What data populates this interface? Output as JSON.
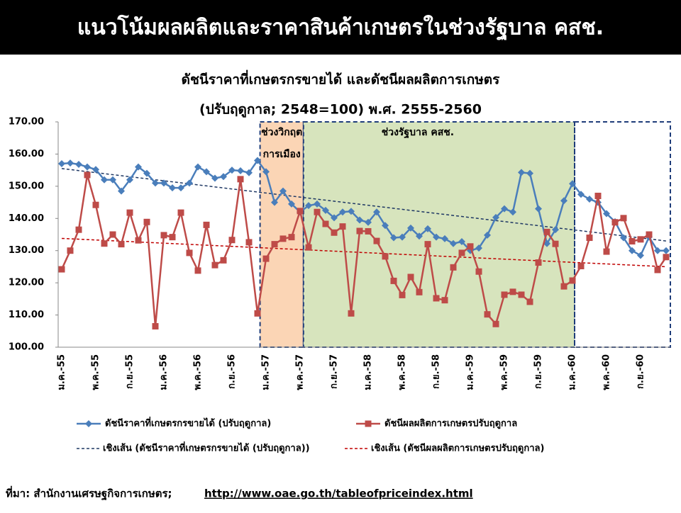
{
  "header": {
    "title": "แนวโน้มผลผลิตและราคาสินค้าเกษตรในช่วงรัฐบาล คสช."
  },
  "chart_data": {
    "type": "line",
    "title": [
      "ดัชนีราคาที่เกษตรกรขายได้ และดัชนีผลผลิตการเกษตร",
      "(ปรับฤดูกาล; 2548=100) พ.ศ. 2555-2560"
    ],
    "categories": [
      "ม.ค.-55",
      null,
      null,
      null,
      "พ.ค.-55",
      null,
      null,
      null,
      "ก.ย.-55",
      null,
      null,
      null,
      "ม.ค.-56",
      null,
      null,
      null,
      "พ.ค.-56",
      null,
      null,
      null,
      "ก.ย.-56",
      null,
      null,
      null,
      "ม.ค.-57",
      null,
      null,
      null,
      "พ.ค.-57",
      null,
      null,
      null,
      "ก.ย.-57",
      null,
      null,
      null,
      "ม.ค.-58",
      null,
      null,
      null,
      "พ.ค.-58",
      null,
      null,
      null,
      "ก.ย.-58",
      null,
      null,
      null,
      "ม.ค.-59",
      null,
      null,
      null,
      "พ.ค.-59",
      null,
      null,
      null,
      "ก.ย.-59",
      null,
      null,
      null,
      "ม.ค.-60",
      null,
      null,
      null,
      "พ.ค.-60",
      null,
      null,
      null,
      "ก.ย.-60",
      null,
      null,
      null
    ],
    "series": [
      {
        "name": "ดัชนีราคาที่เกษตรกรขายได้ (ปรับฤดูกาล)",
        "color": "#4a7ebb",
        "marker": "diamond",
        "values": [
          157,
          157.2,
          156.8,
          156,
          155.2,
          152,
          152,
          148.5,
          152,
          156,
          154,
          151,
          151,
          149.5,
          149.5,
          151,
          156,
          154.5,
          152.5,
          153,
          155,
          154.8,
          154.2,
          158,
          154.5,
          145,
          148.5,
          144.5,
          142,
          144,
          144.5,
          142.5,
          140.2,
          142,
          142.2,
          139.5,
          138.8,
          142,
          137.8,
          134,
          134.2,
          137,
          134.5,
          136.8,
          134.2,
          133.7,
          132.2,
          132.8,
          130,
          130.8,
          134.8,
          140.3,
          143,
          142,
          154.3,
          154,
          143,
          132.2,
          136.5,
          145.5,
          150.8,
          147.5,
          146,
          145,
          141.5,
          139,
          134,
          130,
          128.5,
          134.2,
          130,
          130
        ]
      },
      {
        "name": "ดัชนีผลผลิตการเกษตรปรับฤดูกาล",
        "color": "#be4b48",
        "marker": "square",
        "values": [
          124.2,
          130,
          136.5,
          153.5,
          144.2,
          132.2,
          135,
          132,
          141.8,
          133.2,
          138.9,
          106.5,
          134.8,
          134.2,
          141.8,
          129.3,
          123.8,
          138,
          125.5,
          127,
          133.3,
          152.2,
          132.6,
          110.5,
          127.5,
          132,
          133.7,
          134.2,
          142.3,
          131,
          142,
          138.3,
          135.6,
          137.5,
          110.5,
          136.1,
          136,
          133,
          128.2,
          120.6,
          116.2,
          121.8,
          117.1,
          132,
          115.2,
          114.6,
          124.8,
          129.3,
          131.3,
          123.5,
          110.2,
          107.2,
          116.3,
          117.2,
          116.3,
          114.1,
          126.3,
          135.8,
          132.1,
          118.9,
          120.7,
          125.2,
          134,
          147,
          129.7,
          138.8,
          140.1,
          132.9,
          133.5,
          135,
          124,
          128
        ]
      }
    ],
    "trends": [
      {
        "name": "เชิงเส้น (ดัชนีราคาที่เกษตรกรขายได้ (ปรับฤดูกาล))",
        "color": "#1f3864",
        "start": 155.5,
        "end": 133
      },
      {
        "name": "เชิงเส้น (ดัชนีผลผลิตการเกษตรปรับฤดูกาล)",
        "color": "#c00000",
        "start": 133.8,
        "end": 125
      }
    ],
    "regions": [
      {
        "label": [
          "ช่วงวิกฤต",
          "การเมือง"
        ],
        "start": 23.3,
        "end": 28.4,
        "color": "#fbd5b5"
      },
      {
        "label": [
          "ช่วงรัฐบาล คสช."
        ],
        "start": 28.4,
        "end": 60.25,
        "color": "#d7e4bd"
      },
      {
        "label": [],
        "start": 60.25,
        "end": 71.5,
        "color": "none"
      }
    ],
    "ylim": [
      100,
      170
    ],
    "yticks": [
      {
        "value": 100,
        "label": "100.00"
      },
      {
        "value": 110,
        "label": "110.00"
      },
      {
        "value": 120,
        "label": "120.00"
      },
      {
        "value": 130,
        "label": "130.00"
      },
      {
        "value": 140,
        "label": "140.00"
      },
      {
        "value": 150,
        "label": "150.00"
      },
      {
        "value": 160,
        "label": "160.00"
      },
      {
        "value": 170,
        "label": "170.00"
      }
    ]
  },
  "source": {
    "prefix": "ที่มา: สำนักงานเศรษฐกิจการเกษตร;",
    "link": "http://www.oae.go.th/tableofpriceindex.html"
  }
}
